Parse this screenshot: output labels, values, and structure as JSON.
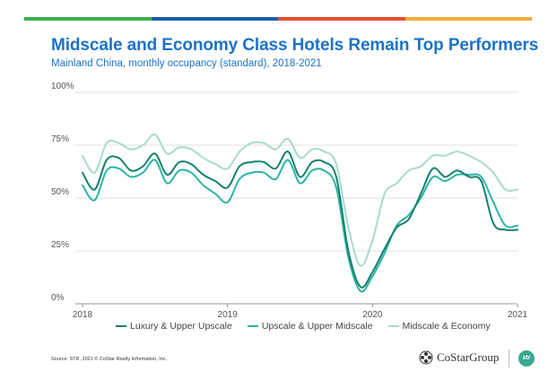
{
  "header": {
    "title": "Midscale and Economy Class Hotels Remain Top Performers",
    "subtitle": "Mainland China, monthly occupancy (standard), 2018-2021",
    "bar_colors": [
      "#3db04b",
      "#1b5ea8",
      "#e84e2c",
      "#f4a93a"
    ]
  },
  "footer": {
    "source": "Source: STR, 2021 © CoStar Realty Information, Inc.",
    "logo_text": "CoStarGroup",
    "badge_text": "str",
    "logo_icon": "costar-star-icon"
  },
  "chart_data": {
    "type": "line",
    "title": "Midscale and Economy Class Hotels Remain Top Performers",
    "subtitle": "Mainland China, monthly occupancy (standard), 2018-2021",
    "xlabel": "",
    "ylabel": "",
    "ylim": [
      0,
      100
    ],
    "yticks": [
      "0%",
      "25%",
      "50%",
      "75%",
      "100%"
    ],
    "ytick_values": [
      0,
      25,
      50,
      75,
      100
    ],
    "xticks": [
      "2018",
      "2019",
      "2020",
      "2021"
    ],
    "xlim": [
      "2018-01",
      "2021-01"
    ],
    "grid": true,
    "legend_position": "bottom",
    "x": [
      "2018-01",
      "2018-02",
      "2018-03",
      "2018-04",
      "2018-05",
      "2018-06",
      "2018-07",
      "2018-08",
      "2018-09",
      "2018-10",
      "2018-11",
      "2018-12",
      "2019-01",
      "2019-02",
      "2019-03",
      "2019-04",
      "2019-05",
      "2019-06",
      "2019-07",
      "2019-08",
      "2019-09",
      "2019-10",
      "2019-11",
      "2019-12",
      "2020-01",
      "2020-02",
      "2020-03",
      "2020-04",
      "2020-05",
      "2020-06",
      "2020-07",
      "2020-08",
      "2020-09",
      "2020-10",
      "2020-11",
      "2020-12",
      "2021-01"
    ],
    "series": [
      {
        "name": "Luxury & Upper Upscale",
        "color": "#16806f",
        "values": [
          62,
          54,
          68,
          69,
          63,
          65,
          71,
          61,
          67,
          66,
          61,
          58,
          55,
          65,
          67,
          67,
          64,
          72,
          60,
          67,
          67,
          60,
          25,
          8,
          15,
          26,
          36,
          40,
          52,
          64,
          60,
          63,
          60,
          58,
          38,
          35,
          35
        ]
      },
      {
        "name": "Upscale & Upper Midscale",
        "color": "#2bb5a2",
        "values": [
          56,
          49,
          63,
          64,
          60,
          62,
          68,
          57,
          63,
          62,
          56,
          52,
          48,
          59,
          62,
          62,
          59,
          68,
          57,
          63,
          63,
          55,
          22,
          6,
          13,
          24,
          37,
          42,
          50,
          60,
          58,
          61,
          61,
          60,
          48,
          37,
          37
        ]
      },
      {
        "name": "Midscale & Economy",
        "color": "#a8dcc8",
        "values": [
          70,
          62,
          76,
          76,
          73,
          75,
          80,
          71,
          74,
          73,
          69,
          66,
          64,
          72,
          76,
          76,
          73,
          78,
          69,
          73,
          72,
          66,
          36,
          18,
          30,
          52,
          57,
          63,
          65,
          70,
          70,
          72,
          70,
          67,
          62,
          54,
          54
        ]
      }
    ]
  }
}
